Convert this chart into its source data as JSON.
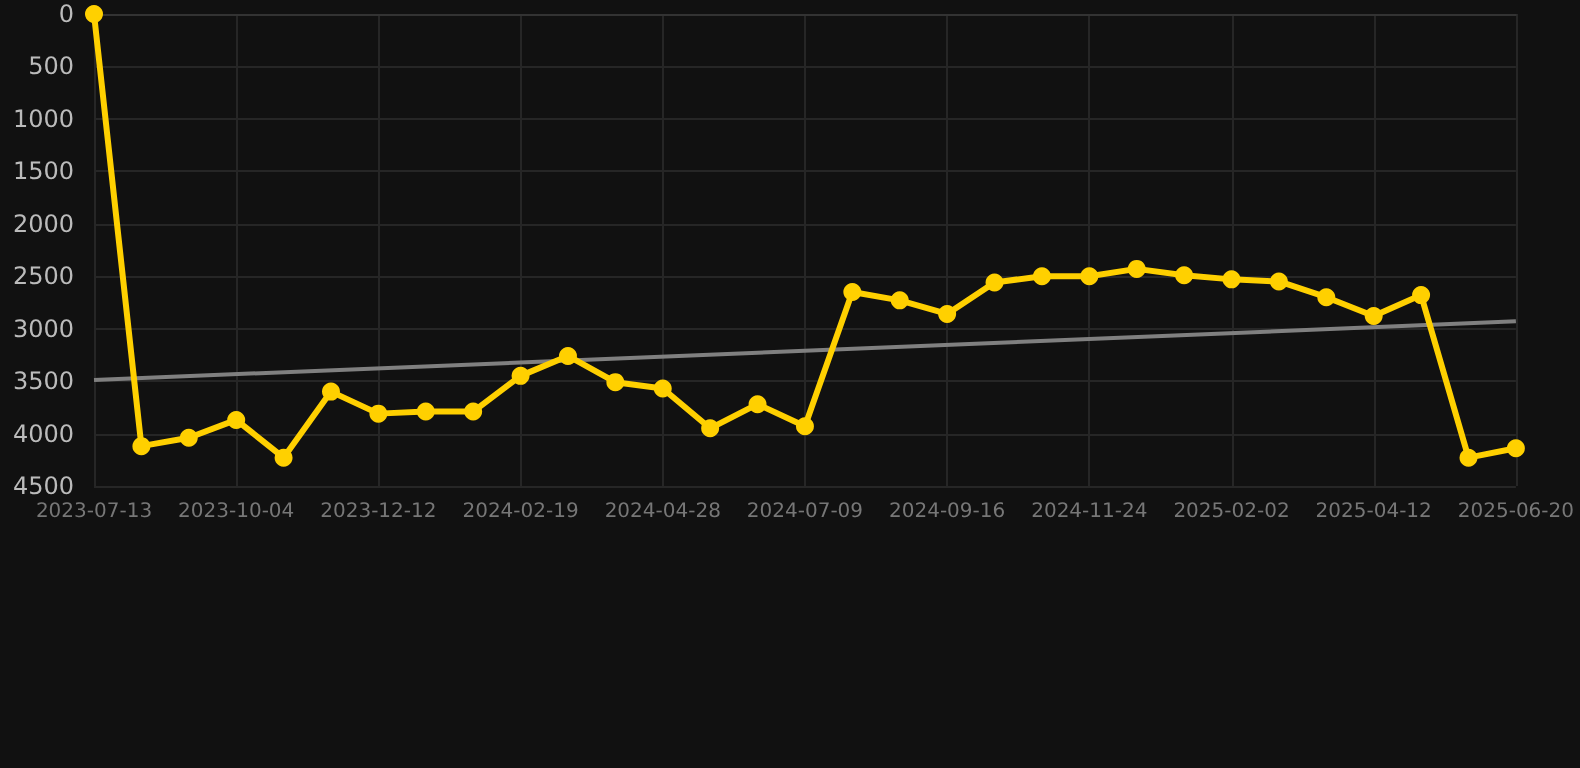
{
  "chart_data": {
    "type": "line",
    "categories": [
      "2023-07-13",
      null,
      null,
      "2023-10-04",
      null,
      null,
      "2023-12-12",
      null,
      null,
      "2024-02-19",
      null,
      null,
      "2024-04-28",
      null,
      null,
      "2024-07-09",
      null,
      null,
      "2024-09-16",
      null,
      null,
      "2024-11-24",
      null,
      null,
      "2025-02-02",
      null,
      null,
      "2025-04-12",
      null,
      null,
      "2025-06-20"
    ],
    "series": [
      {
        "color": "#ffd000",
        "marker": "circle",
        "values": [
          0,
          4120,
          4040,
          3870,
          4230,
          3600,
          3810,
          3790,
          3790,
          3450,
          3260,
          3510,
          3570,
          3950,
          3720,
          3930,
          2650,
          2730,
          2860,
          2560,
          2500,
          2500,
          2430,
          2490,
          2530,
          2550,
          2700,
          2880,
          2680,
          4230,
          4140
        ]
      },
      {
        "type": "line",
        "color": "#808080",
        "marker": "none",
        "values": [
          3490,
          null,
          null,
          null,
          null,
          null,
          null,
          null,
          null,
          null,
          null,
          null,
          null,
          null,
          null,
          null,
          null,
          null,
          null,
          null,
          null,
          null,
          null,
          null,
          null,
          null,
          null,
          null,
          null,
          null,
          2930
        ]
      }
    ],
    "ylim": [
      4500,
      0
    ],
    "yticks": [
      0,
      500,
      1000,
      1500,
      2000,
      2500,
      3000,
      3500,
      4000,
      4500
    ],
    "grid": true
  }
}
